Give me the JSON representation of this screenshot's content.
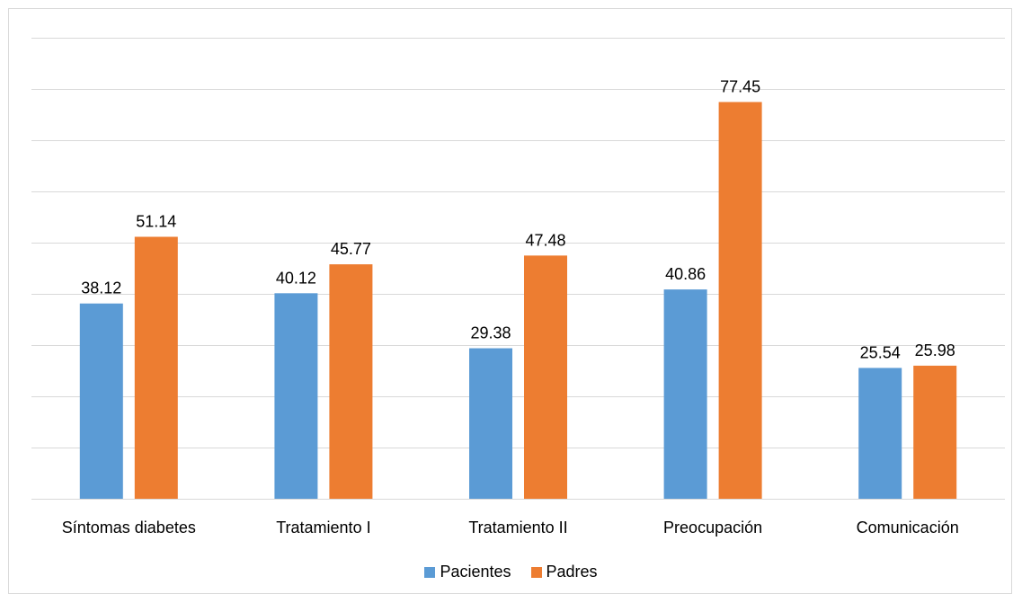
{
  "colors": {
    "pacientes": "#5b9bd5",
    "padres": "#ed7d31",
    "grid": "#d9d9d9",
    "text": "#000000"
  },
  "chart_data": {
    "type": "bar",
    "categories": [
      "Síntomas diabetes",
      "Tratamiento I",
      "Tratamiento II",
      "Preocupación",
      "Comunicación"
    ],
    "series": [
      {
        "name": "Pacientes",
        "values": [
          38.12,
          40.12,
          29.38,
          40.86,
          25.54
        ],
        "labels": [
          "38.12",
          "40.12",
          "29.38",
          "40.86",
          "25.54"
        ]
      },
      {
        "name": "Padres",
        "values": [
          51.14,
          45.77,
          47.48,
          77.45,
          25.98
        ],
        "labels": [
          "51.14",
          "45.77",
          "47.48",
          "77.45",
          "25.98"
        ]
      }
    ],
    "ylim": [
      0,
      90
    ],
    "y_gridline_step": 10,
    "grid": true,
    "legend_position": "bottom"
  },
  "legend": {
    "items": [
      {
        "label": "Pacientes"
      },
      {
        "label": "Padres"
      }
    ]
  }
}
